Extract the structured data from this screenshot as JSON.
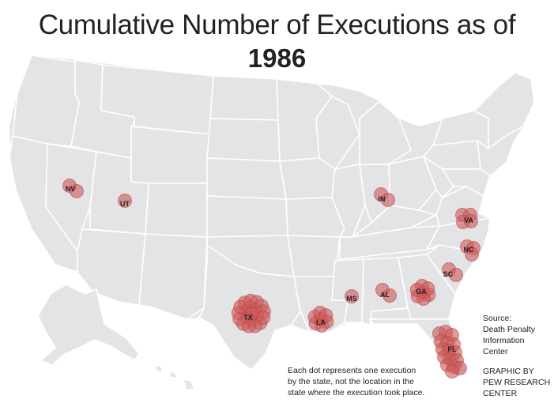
{
  "title": {
    "line1": "Cumulative Number of Executions as of",
    "line2": "1986"
  },
  "dot_color": "#cd5858",
  "map_fill": "#e4e4e6",
  "states": [
    {
      "abbr": "NV",
      "executions": 2
    },
    {
      "abbr": "UT",
      "executions": 1
    },
    {
      "abbr": "IN",
      "executions": 2
    },
    {
      "abbr": "VA",
      "executions": 4
    },
    {
      "abbr": "NC",
      "executions": 3
    },
    {
      "abbr": "SC",
      "executions": 2
    },
    {
      "abbr": "MS",
      "executions": 1
    },
    {
      "abbr": "AL",
      "executions": 2
    },
    {
      "abbr": "GA",
      "executions": 7
    },
    {
      "abbr": "TX",
      "executions": 20
    },
    {
      "abbr": "LA",
      "executions": 7
    },
    {
      "abbr": "FL",
      "executions": 16
    }
  ],
  "note": {
    "lines": [
      "Each dot represents one execution",
      "by the state, not the location in the",
      "state where the execution took place."
    ]
  },
  "source": {
    "lines": [
      "Source:",
      "Death Penalty",
      "Information",
      "Center"
    ]
  },
  "credit": {
    "lines": [
      "GRAPHIC BY",
      "PEW RESEARCH",
      "CENTER"
    ]
  }
}
